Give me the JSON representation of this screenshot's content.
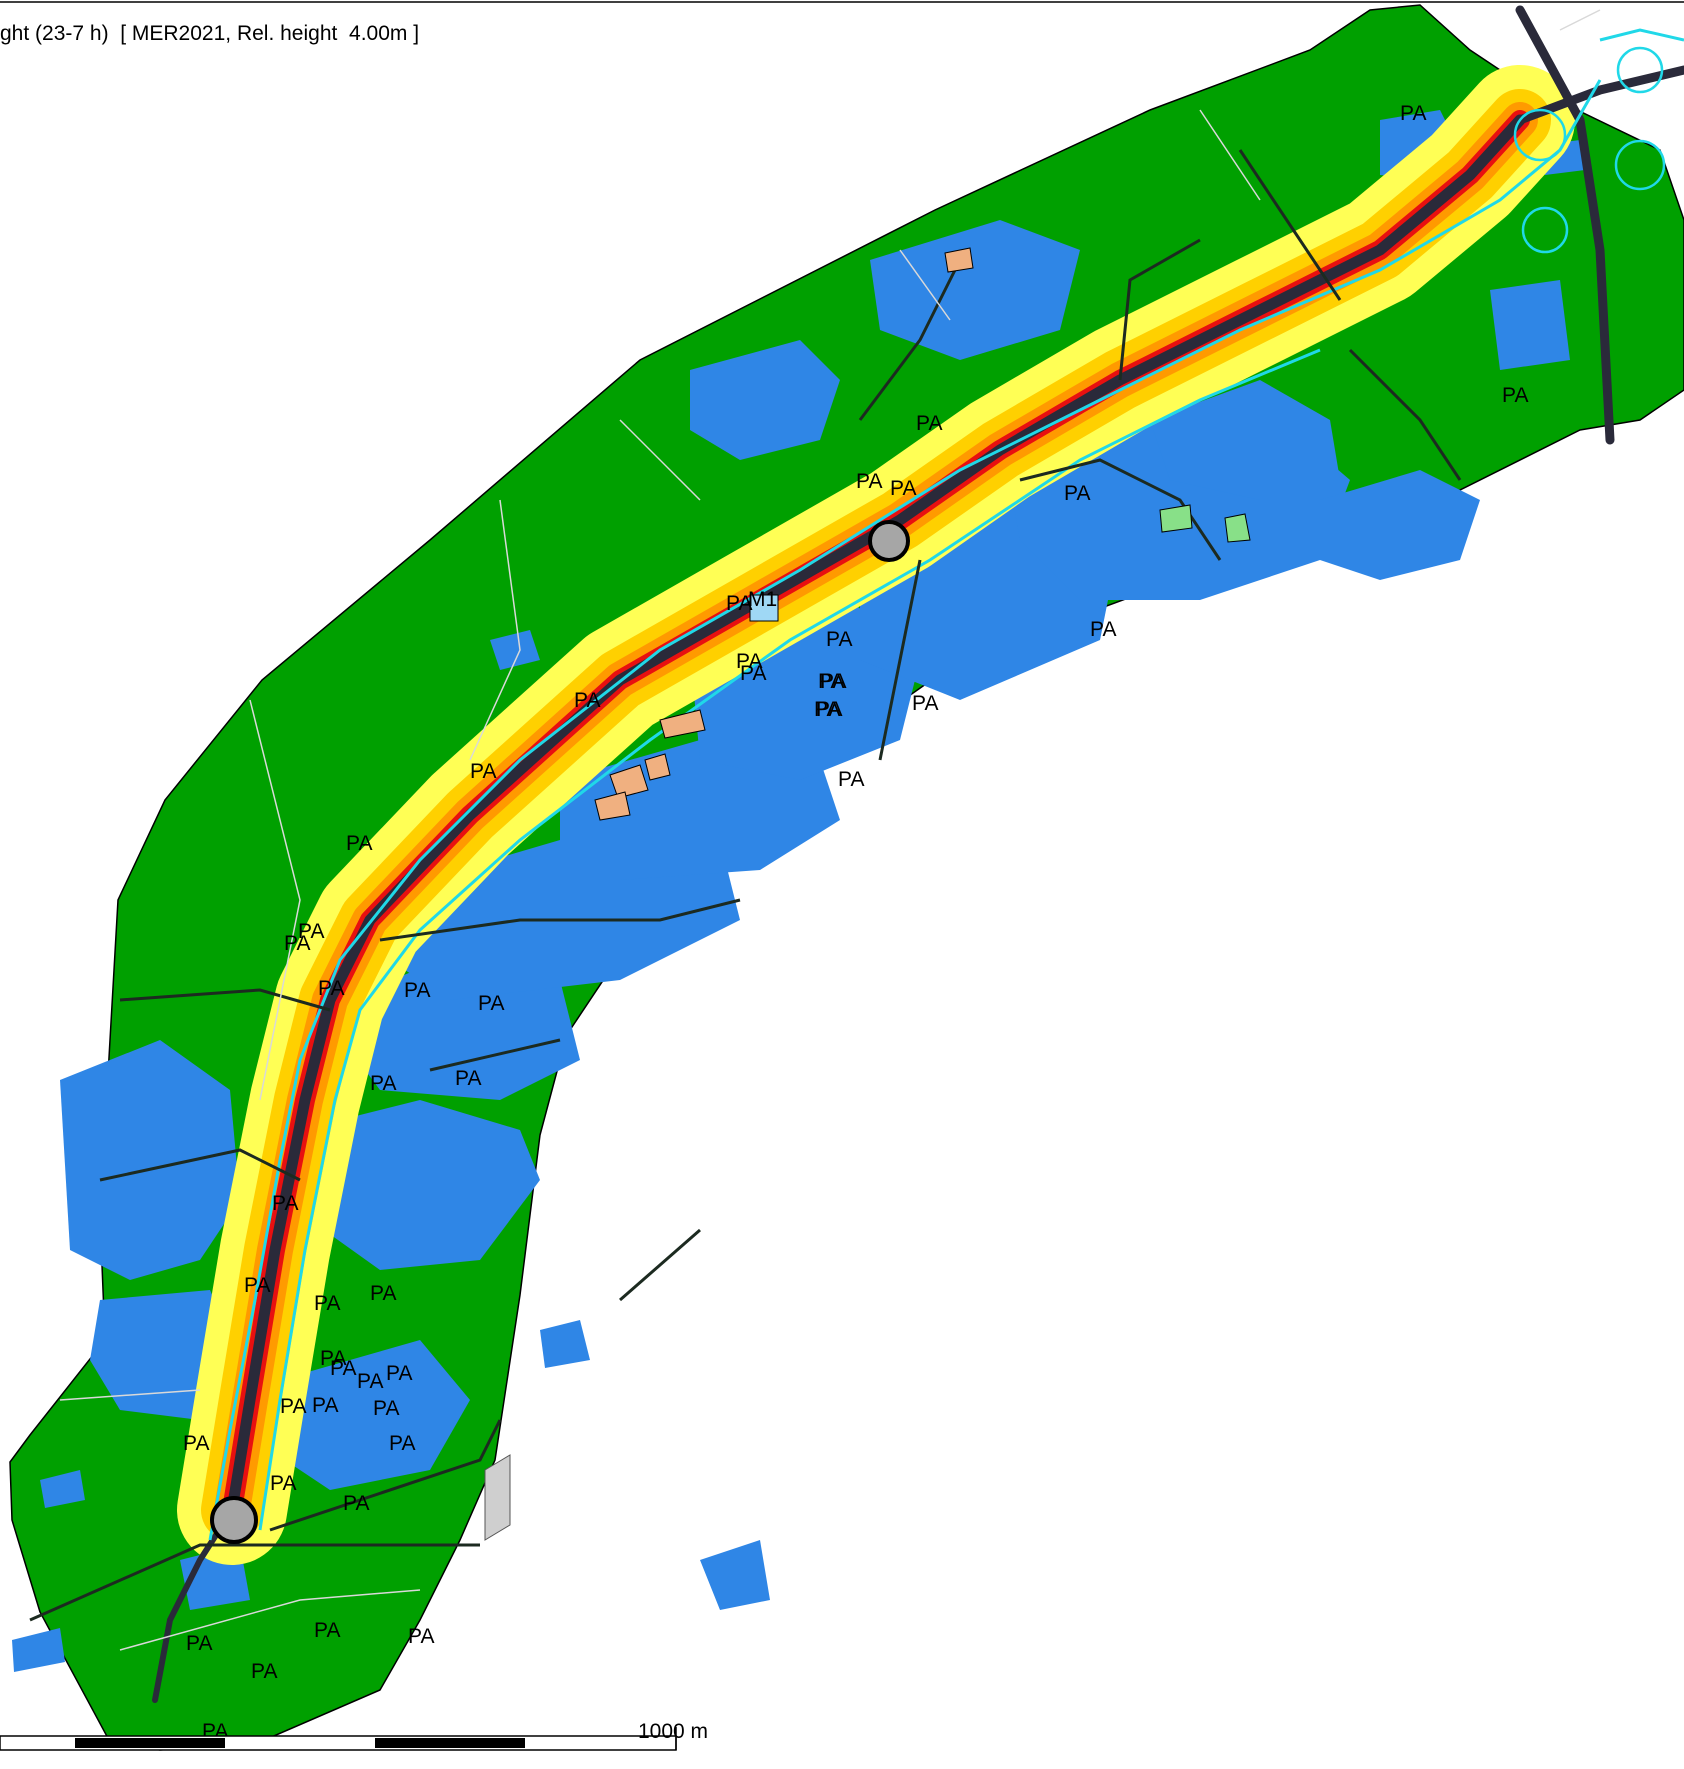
{
  "map": {
    "title": "ght (23-7 h)  [ MER2021, Rel. height  4.00m ]",
    "scale_label": "1000 m",
    "zone_label": "PA",
    "special_label": "M1",
    "zone_labels": [
      "PA",
      "PA",
      "PA",
      "PA",
      "PA",
      "PA",
      "PA",
      "PA",
      "PA",
      "PA",
      "PA",
      "PA",
      "PA",
      "PA",
      "PA",
      "PA",
      "PA",
      "PA",
      "PA",
      "PA",
      "PA",
      "PA",
      "PA",
      "PA",
      "PA",
      "PA",
      "PA",
      "PA",
      "PA",
      "PA",
      "PA",
      "PA",
      "PA",
      "PA",
      "PA",
      "PA",
      "PA",
      "PA",
      "PA",
      "PA",
      "PA",
      "PA",
      "PA",
      "PA",
      "PA",
      "PA",
      "PA"
    ],
    "colors": {
      "background": "#ffffff",
      "low_noise": "#00a000",
      "buildings": "#2f86e6",
      "moderate_noise": "#ffff55",
      "elevated_noise": "#ffd000",
      "high_noise": "#ff9a00",
      "very_high_noise": "#e81010",
      "road": "#2a2a3a",
      "water_lines": "#20d8e8",
      "outline": "#000000",
      "roundabout": "#a6a6a6",
      "industrial": "#f0b080"
    },
    "legend_semantics": {
      "green": "lowest noise band",
      "blue": "buildings / dwellings",
      "yellow": "moderate noise band",
      "orange": "high noise band",
      "red": "highest noise band along motorway"
    }
  }
}
